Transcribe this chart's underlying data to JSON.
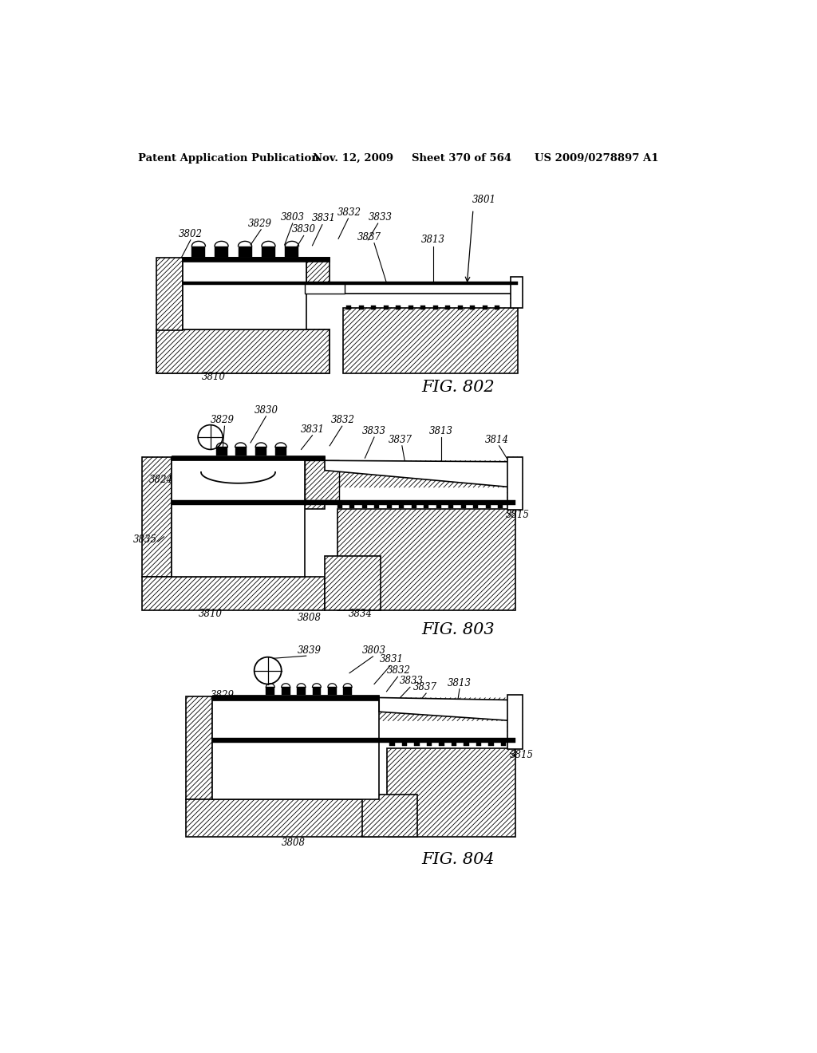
{
  "background_color": "#ffffff",
  "header_text": "Patent Application Publication",
  "header_date": "Nov. 12, 2009",
  "header_sheet": "Sheet 370 of 564",
  "header_patent": "US 2009/0278897 A1",
  "fig802_label": "FIG. 802",
  "fig803_label": "FIG. 803",
  "fig804_label": "FIG. 804"
}
